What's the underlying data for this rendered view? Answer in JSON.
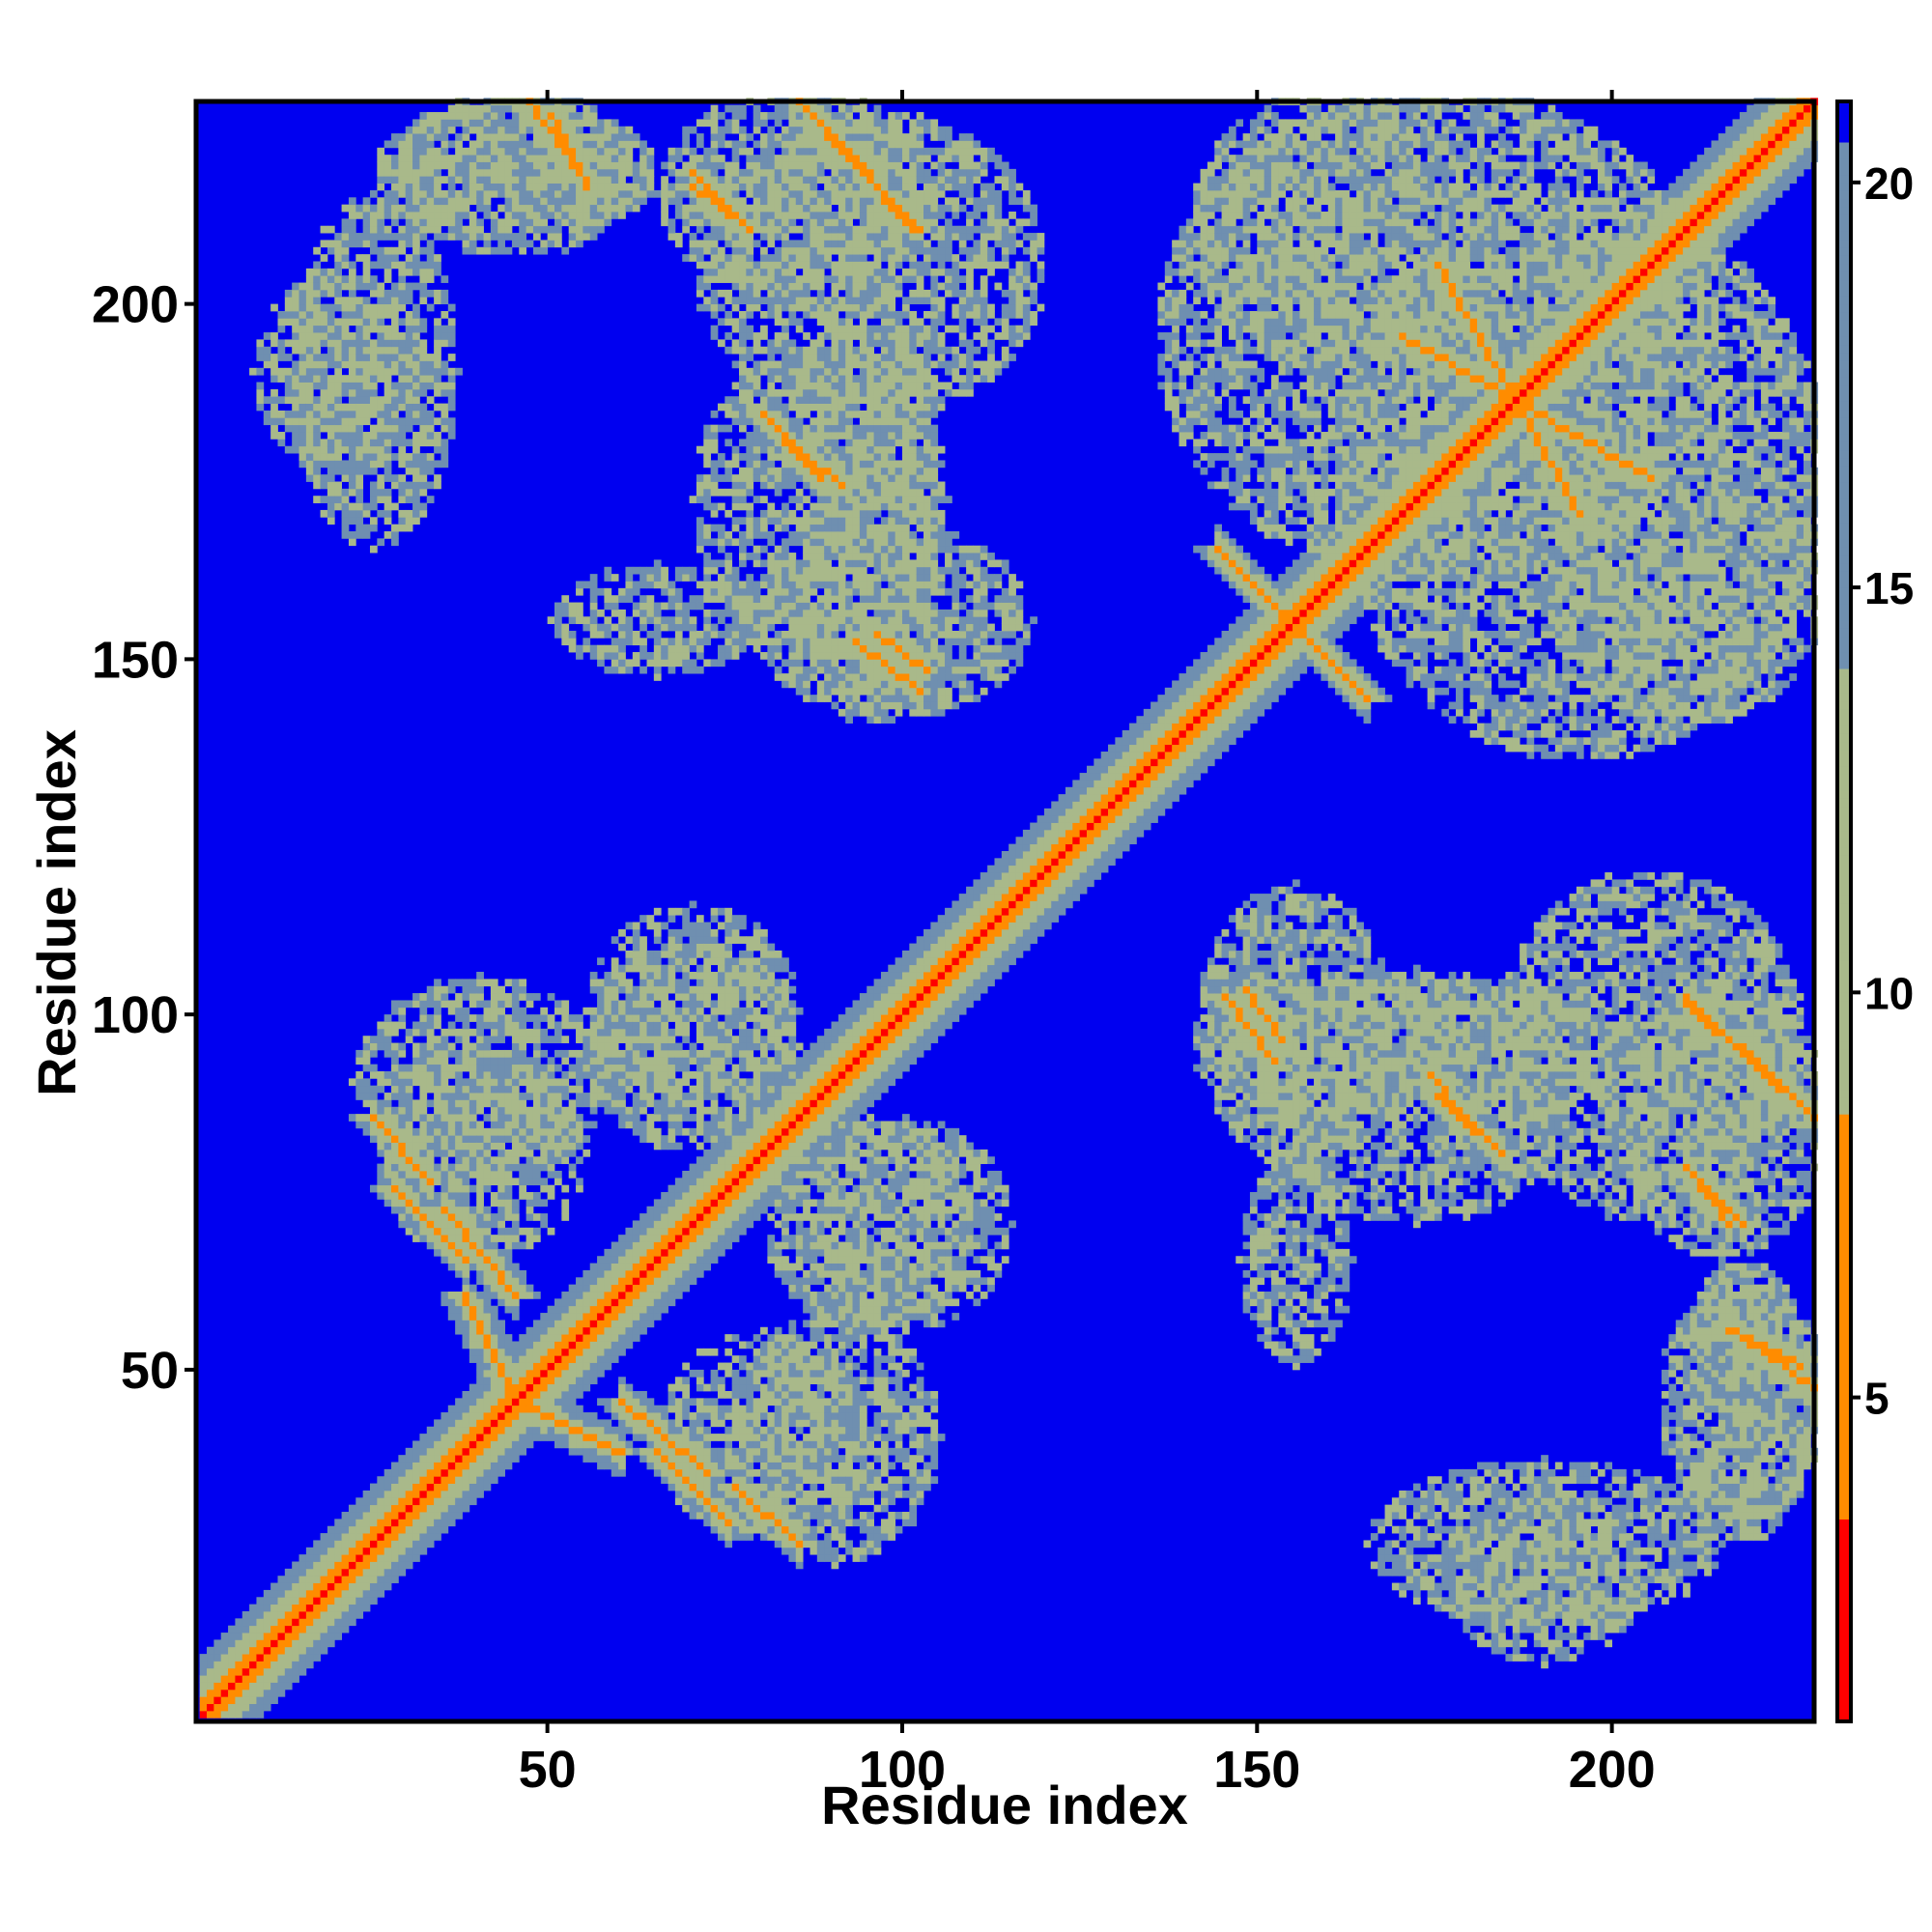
{
  "chart_data": {
    "type": "heatmap",
    "title": "",
    "xlabel": "Residue index",
    "ylabel": "Residue index",
    "n_residues": 228,
    "xlim": [
      1,
      228
    ],
    "ylim": [
      1,
      228
    ],
    "x_ticks": [
      50,
      100,
      150,
      200
    ],
    "y_ticks": [
      50,
      100,
      150,
      200
    ],
    "colorbar": {
      "ticks": [
        5,
        10,
        15,
        20
      ],
      "range": [
        1,
        21
      ],
      "colors": {
        "near": "#ff0000",
        "mid": "#ff8c00",
        "far_low": "#a9b98a",
        "far_high": "#6f8fb0",
        "background": "#0000f0"
      }
    },
    "symmetric": true,
    "diagonal": {
      "from": 1,
      "to": 228,
      "distance": 1
    },
    "contact_bands": [
      {
        "name": "diagonal-neighborhood",
        "i": [
          1,
          140
        ],
        "j": [
          1,
          140
        ],
        "halfwidth": 8,
        "level": "mid"
      },
      {
        "name": "N-domain-core",
        "i": [
          25,
          75
        ],
        "j": [
          25,
          75
        ],
        "level": "far_low"
      },
      {
        "name": "N-domain-upper",
        "i": [
          60,
          110
        ],
        "j": [
          60,
          110
        ],
        "level": "far_low"
      },
      {
        "name": "C-domain-core",
        "i": [
          140,
          228
        ],
        "j": [
          140,
          228
        ],
        "level": "far_low"
      }
    ],
    "strands": [
      {
        "i_start": 47,
        "i_end": 54,
        "j_start": 228,
        "j_end": 218,
        "orientation": "anti"
      },
      {
        "i_start": 70,
        "i_end": 78,
        "j_start": 216,
        "j_end": 210,
        "orientation": "anti"
      },
      {
        "i_start": 85,
        "i_end": 101,
        "j_start": 228,
        "j_end": 210,
        "orientation": "anti"
      },
      {
        "i_start": 80,
        "i_end": 88,
        "j_start": 184,
        "j_end": 175,
        "orientation": "anti"
      },
      {
        "i_start": 93,
        "i_end": 102,
        "j_start": 152,
        "j_end": 145,
        "orientation": "anti"
      },
      {
        "i_start": 35,
        "i_end": 45,
        "j_start": 72,
        "j_end": 60,
        "orientation": "anti"
      },
      {
        "i_start": 45,
        "i_end": 60,
        "j_start": 45,
        "j_end": 38,
        "orientation": "anti"
      },
      {
        "i_start": 65,
        "i_end": 75,
        "j_start": 38,
        "j_end": 28,
        "orientation": "anti"
      },
      {
        "i_start": 25,
        "i_end": 33,
        "j_start": 85,
        "j_end": 76,
        "orientation": "anti"
      },
      {
        "i_start": 148,
        "i_end": 153,
        "j_start": 103,
        "j_end": 96,
        "orientation": "anti"
      },
      {
        "i_start": 174,
        "i_end": 180,
        "j_start": 91,
        "j_end": 83,
        "orientation": "anti"
      },
      {
        "i_start": 210,
        "i_end": 225,
        "j_start": 102,
        "j_end": 88,
        "orientation": "anti"
      },
      {
        "i_start": 210,
        "i_end": 218,
        "j_start": 78,
        "j_end": 70,
        "orientation": "anti"
      },
      {
        "i_start": 216,
        "i_end": 226,
        "j_start": 55,
        "j_end": 50,
        "orientation": "anti"
      },
      {
        "i_start": 145,
        "i_end": 165,
        "j_start": 164,
        "j_end": 144,
        "orientation": "anti"
      },
      {
        "i_start": 175,
        "i_end": 195,
        "j_start": 205,
        "j_end": 170,
        "orientation": "anti"
      }
    ],
    "contact_blobs": [
      {
        "ci": 45,
        "cj": 218,
        "ri": 18,
        "rj": 12
      },
      {
        "ci": 95,
        "cj": 205,
        "ri": 25,
        "rj": 22
      },
      {
        "ci": 88,
        "cj": 172,
        "ri": 18,
        "rj": 22
      },
      {
        "ci": 98,
        "cj": 155,
        "ri": 20,
        "rj": 14
      },
      {
        "ci": 20,
        "cj": 190,
        "ri": 12,
        "rj": 14
      },
      {
        "ci": 175,
        "cj": 195,
        "ri": 40,
        "rj": 35
      },
      {
        "ci": 210,
        "cj": 160,
        "ri": 20,
        "rj": 20
      },
      {
        "ci": 160,
        "cj": 95,
        "ri": 20,
        "rj": 10
      },
      {
        "ci": 185,
        "cj": 95,
        "ri": 15,
        "rj": 10
      },
      {
        "ci": 215,
        "cj": 85,
        "ri": 15,
        "rj": 20
      },
      {
        "ci": 218,
        "cj": 45,
        "ri": 10,
        "rj": 20
      },
      {
        "ci": 190,
        "cj": 25,
        "ri": 25,
        "rj": 12
      },
      {
        "ci": 40,
        "cj": 90,
        "ri": 18,
        "rj": 15
      },
      {
        "ci": 70,
        "cj": 95,
        "ri": 15,
        "rj": 15
      },
      {
        "ci": 80,
        "cj": 40,
        "ri": 15,
        "rj": 15
      },
      {
        "ci": 100,
        "cj": 70,
        "ri": 15,
        "rj": 15
      },
      {
        "ci": 155,
        "cj": 65,
        "ri": 8,
        "rj": 15
      }
    ]
  }
}
